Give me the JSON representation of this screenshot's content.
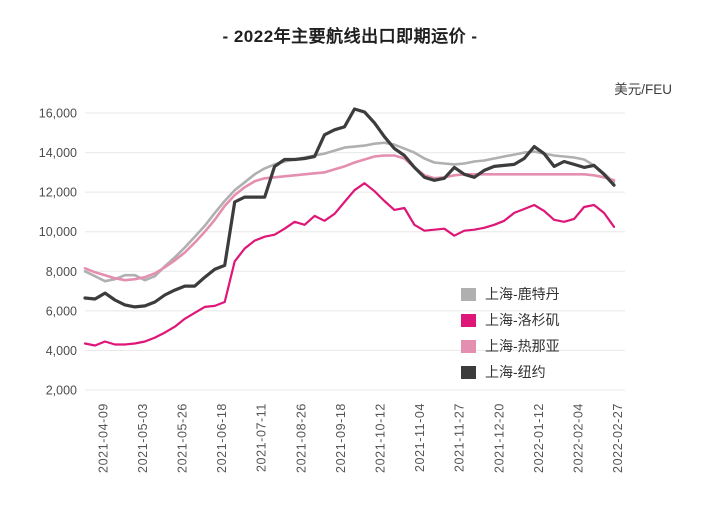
{
  "chart_data": {
    "type": "line",
    "title": "- 2022年主要航线出口即期运价 -",
    "unit_label": "美元/FEU",
    "xlabel": "",
    "ylabel": "",
    "grid": true,
    "legend_position": "inside-lower-right",
    "y_axis": {
      "min": 2000,
      "max": 16000,
      "tick_step": 2000,
      "tick_values": [
        16000,
        14000,
        12000,
        10000,
        8000,
        6000,
        4000,
        2000
      ],
      "tick_labels": [
        "16,000",
        "14,000",
        "12,000",
        "10,000",
        "8,000",
        "6,000",
        "4,000",
        "2,000"
      ]
    },
    "x_tick_labels": [
      "2021-04-09",
      "2021-05-03",
      "2021-05-26",
      "2021-06-18",
      "2021-07-11",
      "2021-08-26",
      "2021-09-18",
      "2021-10-12",
      "2021-11-04",
      "2021-11-27",
      "2021-12-20",
      "2022-01-12",
      "2022-02-04",
      "2022-02-27"
    ],
    "colors": {
      "grid": "#e8e8e8",
      "axis_text": "#4d4d4d",
      "title_text": "#1f1f1f",
      "legend_text": "#333333"
    },
    "series": [
      {
        "name": "上海-鹿特丹",
        "color": "#b0b0b0",
        "values": [
          8000,
          7750,
          7500,
          7600,
          7800,
          7800,
          7550,
          7750,
          8250,
          8700,
          9200,
          9750,
          10300,
          10950,
          11550,
          12100,
          12500,
          12900,
          13200,
          13400,
          13550,
          13650,
          13750,
          13850,
          13950,
          14100,
          14250,
          14300,
          14350,
          14450,
          14500,
          14400,
          14200,
          14000,
          13700,
          13500,
          13450,
          13400,
          13450,
          13550,
          13600,
          13700,
          13800,
          13900,
          14000,
          14050,
          13950,
          13850,
          13800,
          13750,
          13650,
          13350,
          12950,
          12500
        ]
      },
      {
        "name": "上海-洛杉矶",
        "color": "#dd1678",
        "values": [
          4350,
          4250,
          4450,
          4300,
          4300,
          4350,
          4450,
          4650,
          4900,
          5200,
          5600,
          5900,
          6200,
          6250,
          6450,
          8500,
          9150,
          9550,
          9750,
          9850,
          10150,
          10500,
          10350,
          10800,
          10550,
          10900,
          11500,
          12100,
          12450,
          12050,
          11550,
          11100,
          11200,
          10350,
          10050,
          10100,
          10150,
          9800,
          10050,
          10100,
          10200,
          10350,
          10550,
          10950,
          11150,
          11350,
          11050,
          10600,
          10500,
          10650,
          11250,
          11350,
          10950,
          10250
        ]
      },
      {
        "name": "上海-热那亚",
        "color": "#e58fb0",
        "values": [
          8150,
          7950,
          7800,
          7650,
          7550,
          7600,
          7700,
          7900,
          8200,
          8550,
          8950,
          9450,
          10000,
          10600,
          11300,
          11850,
          12250,
          12550,
          12700,
          12750,
          12800,
          12850,
          12900,
          12950,
          13000,
          13150,
          13300,
          13500,
          13650,
          13800,
          13850,
          13850,
          13700,
          13250,
          12850,
          12700,
          12750,
          12850,
          12900,
          12900,
          12900,
          12900,
          12900,
          12900,
          12900,
          12900,
          12900,
          12900,
          12900,
          12900,
          12900,
          12850,
          12750,
          12600
        ]
      },
      {
        "name": "上海-纽约",
        "color": "#3c3c3c",
        "values": [
          6650,
          6600,
          6900,
          6550,
          6300,
          6200,
          6250,
          6450,
          6800,
          7050,
          7250,
          7250,
          7700,
          8100,
          8300,
          11500,
          11750,
          11750,
          11750,
          13300,
          13650,
          13650,
          13700,
          13800,
          14900,
          15150,
          15300,
          16200,
          16050,
          15500,
          14800,
          14200,
          13850,
          13250,
          12750,
          12600,
          12700,
          13250,
          12900,
          12750,
          13100,
          13300,
          13350,
          13400,
          13700,
          14300,
          13950,
          13300,
          13550,
          13400,
          13250,
          13350,
          12900,
          12350
        ]
      }
    ]
  }
}
